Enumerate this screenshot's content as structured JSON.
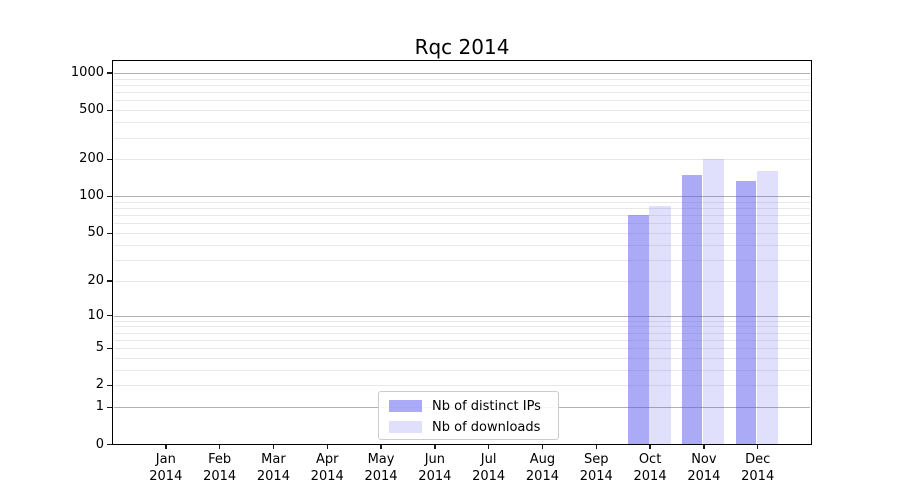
{
  "figure": {
    "background": "#ffffff"
  },
  "chart_data": {
    "type": "bar",
    "title": "Rqc 2014",
    "categories": [
      "Jan",
      "Feb",
      "Mar",
      "Apr",
      "May",
      "Jun",
      "Jul",
      "Aug",
      "Sep",
      "Oct",
      "Nov",
      "Dec"
    ],
    "category_year": "2014",
    "series": [
      {
        "name": "Nb of distinct IPs",
        "color": "rgba(85,85,240,0.5)",
        "values": [
          0,
          0,
          0,
          0,
          0,
          0,
          0,
          0,
          0,
          70,
          150,
          132
        ]
      },
      {
        "name": "Nb of downloads",
        "color": "rgba(85,85,240,0.18)",
        "values": [
          0,
          0,
          0,
          0,
          0,
          0,
          0,
          0,
          0,
          83,
          200,
          160
        ]
      }
    ],
    "yscale": "log1p",
    "ylim": [
      0,
      1284
    ],
    "y_ticks": [
      0,
      1,
      2,
      5,
      10,
      20,
      50,
      100,
      200,
      500,
      1000
    ],
    "grid": {
      "orientation": "horizontal",
      "major_at_powers_of_10": true,
      "major_color": "#b0b0b0",
      "minor_color": "#e8e8e8",
      "minor_subdivisions": [
        2,
        3,
        4,
        5,
        6,
        7,
        8,
        9
      ]
    },
    "legend": {
      "position": "lower center",
      "entries": [
        "Nb of distinct IPs",
        "Nb of downloads"
      ]
    },
    "xlabel": "",
    "ylabel": ""
  }
}
